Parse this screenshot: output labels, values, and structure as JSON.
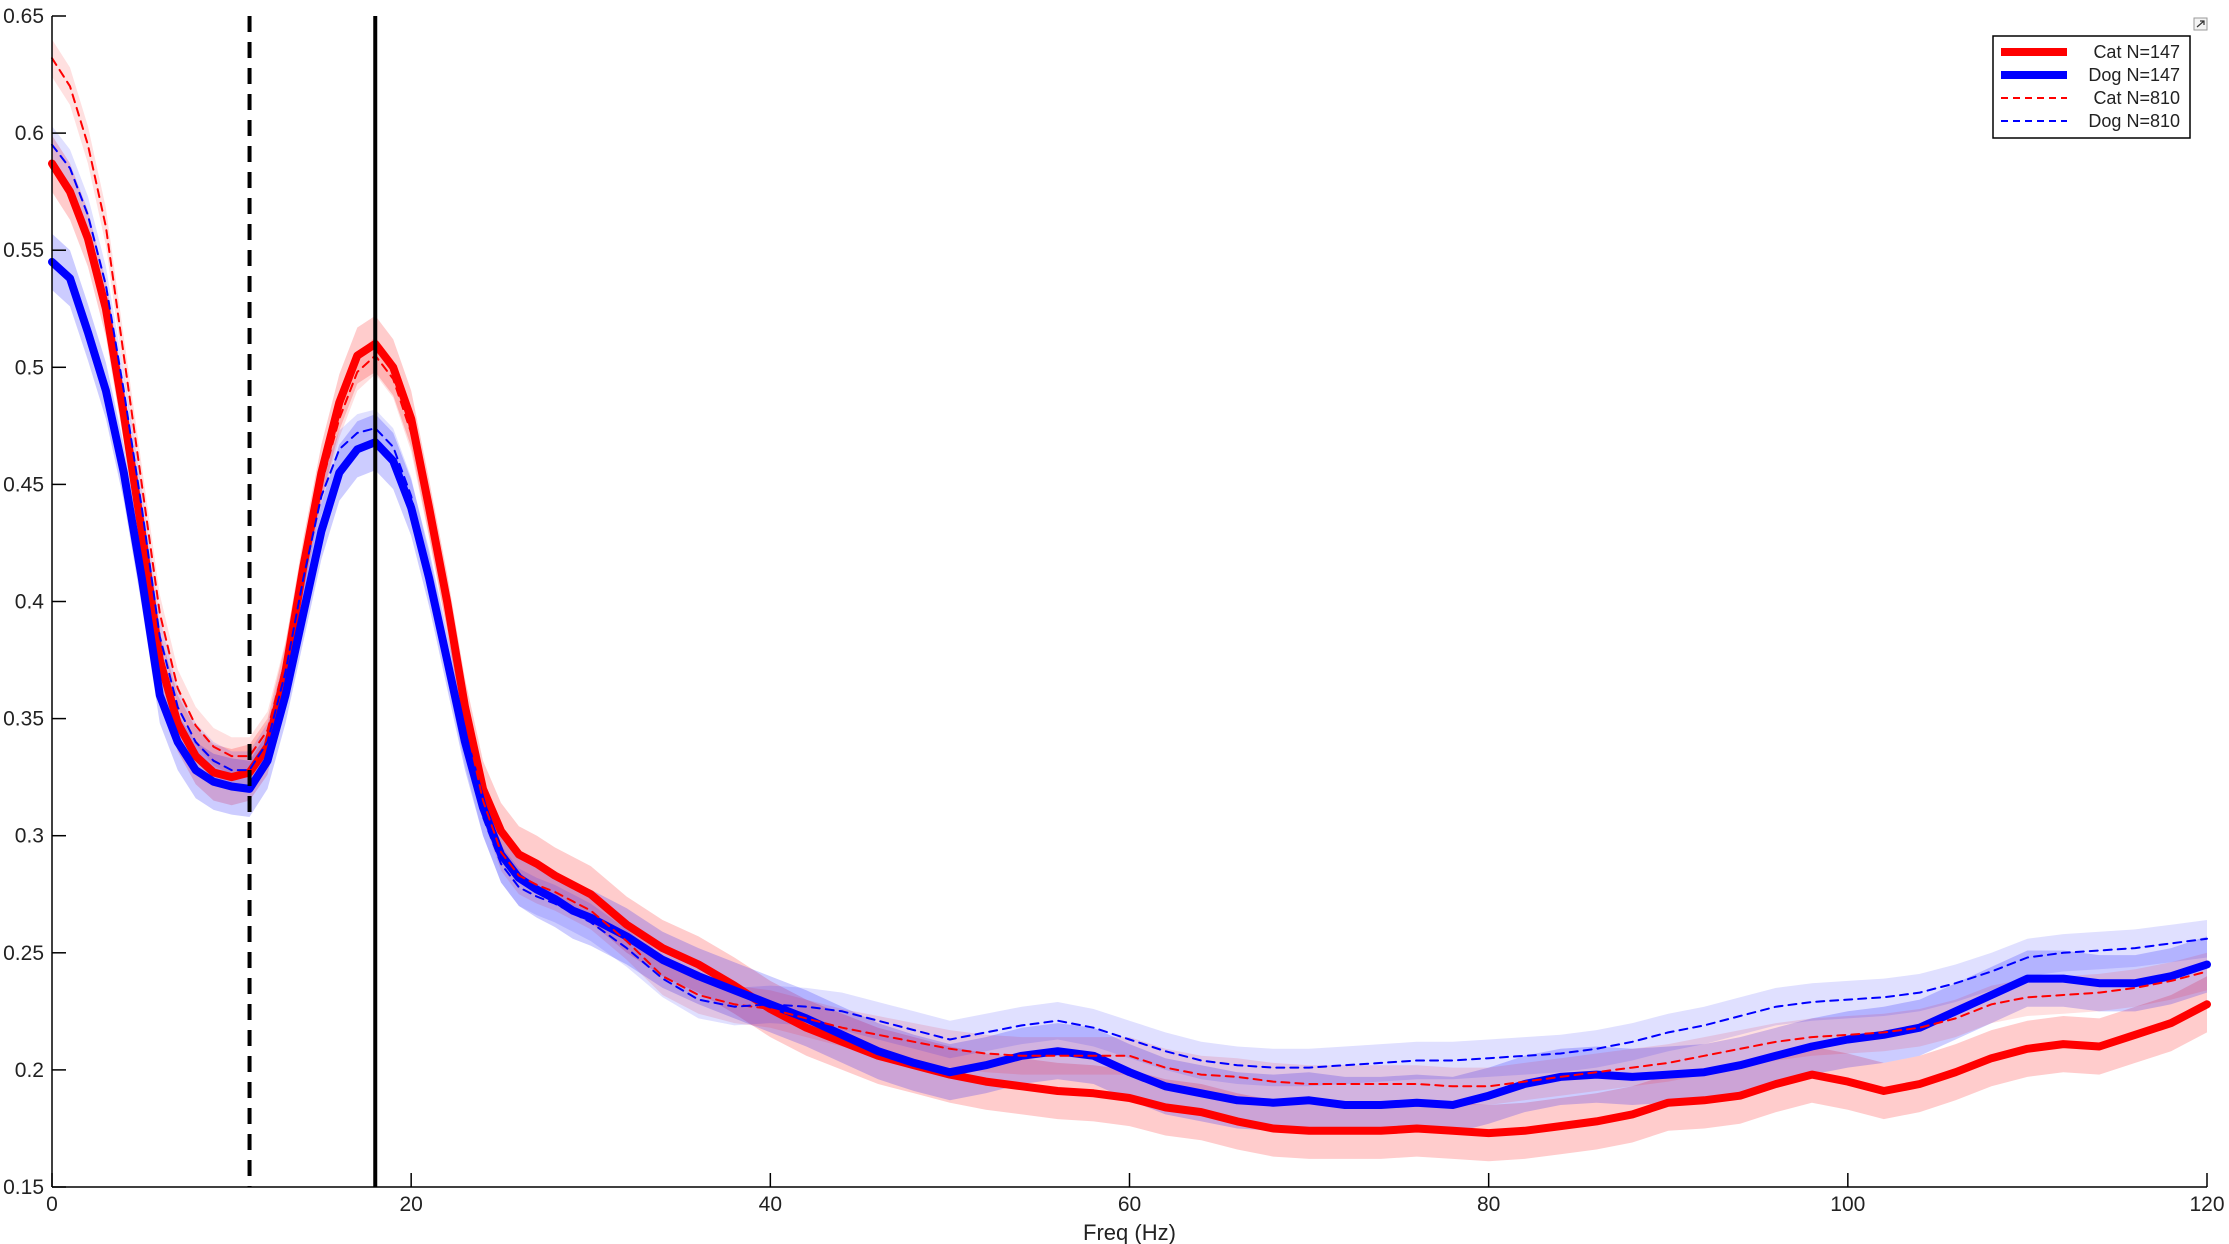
{
  "chart_data": {
    "type": "line",
    "title": "",
    "xlabel": "Freq (Hz)",
    "ylabel": "",
    "xlim": [
      0,
      120
    ],
    "ylim": [
      0.15,
      0.65
    ],
    "xticks": [
      0,
      20,
      40,
      60,
      80,
      100,
      120
    ],
    "yticks": [
      0.15,
      0.2,
      0.25,
      0.3,
      0.35,
      0.4,
      0.45,
      0.5,
      0.55,
      0.6,
      0.65
    ],
    "grid": false,
    "legend_position": "top-right",
    "vlines": [
      {
        "x": 11,
        "style": "dashed",
        "color": "#000000"
      },
      {
        "x": 18,
        "style": "solid",
        "color": "#000000"
      }
    ],
    "series": [
      {
        "name": "Cat N=147",
        "color": "#ff0000",
        "style": "solid",
        "width": "thick",
        "band": 0.012,
        "x": [
          0,
          1,
          2,
          3,
          4,
          5,
          6,
          7,
          8,
          9,
          10,
          11,
          12,
          13,
          14,
          15,
          16,
          17,
          18,
          19,
          20,
          21,
          22,
          23,
          24,
          25,
          26,
          27,
          28,
          29,
          30,
          32,
          34,
          36,
          38,
          40,
          42,
          44,
          46,
          48,
          50,
          52,
          54,
          56,
          58,
          60,
          62,
          64,
          66,
          68,
          70,
          72,
          74,
          76,
          78,
          80,
          82,
          84,
          86,
          88,
          90,
          92,
          94,
          96,
          98,
          100,
          102,
          104,
          106,
          108,
          110,
          112,
          114,
          116,
          118,
          120
        ],
        "values": [
          0.587,
          0.575,
          0.555,
          0.525,
          0.48,
          0.43,
          0.375,
          0.348,
          0.334,
          0.327,
          0.325,
          0.327,
          0.338,
          0.37,
          0.415,
          0.455,
          0.485,
          0.505,
          0.51,
          0.5,
          0.478,
          0.44,
          0.4,
          0.355,
          0.32,
          0.302,
          0.292,
          0.288,
          0.283,
          0.279,
          0.275,
          0.262,
          0.252,
          0.245,
          0.236,
          0.226,
          0.218,
          0.212,
          0.206,
          0.202,
          0.198,
          0.195,
          0.193,
          0.191,
          0.19,
          0.188,
          0.184,
          0.182,
          0.178,
          0.175,
          0.174,
          0.174,
          0.174,
          0.175,
          0.174,
          0.173,
          0.174,
          0.176,
          0.178,
          0.181,
          0.186,
          0.187,
          0.189,
          0.194,
          0.198,
          0.195,
          0.191,
          0.194,
          0.199,
          0.205,
          0.209,
          0.211,
          0.21,
          0.215,
          0.22,
          0.228
        ]
      },
      {
        "name": "Dog N=147",
        "color": "#0000ff",
        "style": "solid",
        "width": "thick",
        "band": 0.012,
        "x": [
          0,
          1,
          2,
          3,
          4,
          5,
          6,
          7,
          8,
          9,
          10,
          11,
          12,
          13,
          14,
          15,
          16,
          17,
          18,
          19,
          20,
          21,
          22,
          23,
          24,
          25,
          26,
          27,
          28,
          29,
          30,
          32,
          34,
          36,
          38,
          40,
          42,
          44,
          46,
          48,
          50,
          52,
          54,
          56,
          58,
          60,
          62,
          64,
          66,
          68,
          70,
          72,
          74,
          76,
          78,
          80,
          82,
          84,
          86,
          88,
          90,
          92,
          94,
          96,
          98,
          100,
          102,
          104,
          106,
          108,
          110,
          112,
          114,
          116,
          118,
          120
        ],
        "values": [
          0.545,
          0.538,
          0.515,
          0.49,
          0.455,
          0.41,
          0.36,
          0.34,
          0.328,
          0.323,
          0.321,
          0.32,
          0.332,
          0.36,
          0.395,
          0.43,
          0.455,
          0.465,
          0.468,
          0.46,
          0.44,
          0.41,
          0.375,
          0.34,
          0.312,
          0.292,
          0.282,
          0.277,
          0.273,
          0.268,
          0.265,
          0.257,
          0.247,
          0.24,
          0.234,
          0.228,
          0.222,
          0.215,
          0.208,
          0.203,
          0.199,
          0.202,
          0.206,
          0.208,
          0.206,
          0.199,
          0.193,
          0.19,
          0.187,
          0.186,
          0.187,
          0.185,
          0.185,
          0.186,
          0.185,
          0.189,
          0.194,
          0.197,
          0.198,
          0.197,
          0.198,
          0.199,
          0.202,
          0.206,
          0.21,
          0.213,
          0.215,
          0.218,
          0.225,
          0.232,
          0.239,
          0.239,
          0.237,
          0.237,
          0.24,
          0.245
        ]
      },
      {
        "name": "Cat N=810",
        "color": "#ff0000",
        "style": "dashed",
        "width": "thin",
        "band": 0.008,
        "x": [
          0,
          1,
          2,
          3,
          4,
          5,
          6,
          7,
          8,
          9,
          10,
          11,
          12,
          13,
          14,
          15,
          16,
          17,
          18,
          19,
          20,
          21,
          22,
          23,
          24,
          25,
          26,
          27,
          28,
          29,
          30,
          32,
          34,
          36,
          38,
          40,
          42,
          44,
          46,
          48,
          50,
          52,
          54,
          56,
          58,
          60,
          62,
          64,
          66,
          68,
          70,
          72,
          74,
          76,
          78,
          80,
          82,
          84,
          86,
          88,
          90,
          92,
          94,
          96,
          98,
          100,
          102,
          104,
          106,
          108,
          110,
          112,
          114,
          116,
          118,
          120
        ],
        "values": [
          0.632,
          0.62,
          0.595,
          0.56,
          0.505,
          0.45,
          0.395,
          0.363,
          0.347,
          0.338,
          0.334,
          0.334,
          0.345,
          0.375,
          0.415,
          0.45,
          0.478,
          0.498,
          0.505,
          0.495,
          0.472,
          0.435,
          0.395,
          0.35,
          0.315,
          0.293,
          0.283,
          0.279,
          0.276,
          0.272,
          0.268,
          0.255,
          0.24,
          0.232,
          0.228,
          0.226,
          0.222,
          0.218,
          0.215,
          0.212,
          0.209,
          0.207,
          0.206,
          0.206,
          0.206,
          0.206,
          0.201,
          0.198,
          0.197,
          0.195,
          0.194,
          0.194,
          0.194,
          0.194,
          0.193,
          0.193,
          0.195,
          0.197,
          0.199,
          0.201,
          0.203,
          0.206,
          0.209,
          0.212,
          0.214,
          0.215,
          0.216,
          0.218,
          0.222,
          0.228,
          0.231,
          0.232,
          0.233,
          0.235,
          0.238,
          0.242
        ]
      },
      {
        "name": "Dog N=810",
        "color": "#0000ff",
        "style": "dashed",
        "width": "thin",
        "band": 0.008,
        "x": [
          0,
          1,
          2,
          3,
          4,
          5,
          6,
          7,
          8,
          9,
          10,
          11,
          12,
          13,
          14,
          15,
          16,
          17,
          18,
          19,
          20,
          21,
          22,
          23,
          24,
          25,
          26,
          27,
          28,
          29,
          30,
          32,
          34,
          36,
          38,
          40,
          42,
          44,
          46,
          48,
          50,
          52,
          54,
          56,
          58,
          60,
          62,
          64,
          66,
          68,
          70,
          72,
          74,
          76,
          78,
          80,
          82,
          84,
          86,
          88,
          90,
          92,
          94,
          96,
          98,
          100,
          102,
          104,
          106,
          108,
          110,
          112,
          114,
          116,
          118,
          120
        ],
        "values": [
          0.595,
          0.585,
          0.565,
          0.535,
          0.49,
          0.44,
          0.385,
          0.355,
          0.34,
          0.332,
          0.328,
          0.328,
          0.34,
          0.37,
          0.41,
          0.445,
          0.465,
          0.472,
          0.474,
          0.466,
          0.445,
          0.412,
          0.375,
          0.338,
          0.308,
          0.288,
          0.278,
          0.274,
          0.271,
          0.267,
          0.263,
          0.252,
          0.239,
          0.23,
          0.227,
          0.228,
          0.227,
          0.225,
          0.221,
          0.217,
          0.213,
          0.216,
          0.219,
          0.221,
          0.218,
          0.213,
          0.208,
          0.204,
          0.202,
          0.201,
          0.201,
          0.202,
          0.203,
          0.204,
          0.204,
          0.205,
          0.206,
          0.207,
          0.209,
          0.212,
          0.216,
          0.219,
          0.223,
          0.227,
          0.229,
          0.23,
          0.231,
          0.233,
          0.237,
          0.242,
          0.248,
          0.25,
          0.251,
          0.252,
          0.254,
          0.256
        ]
      }
    ]
  }
}
